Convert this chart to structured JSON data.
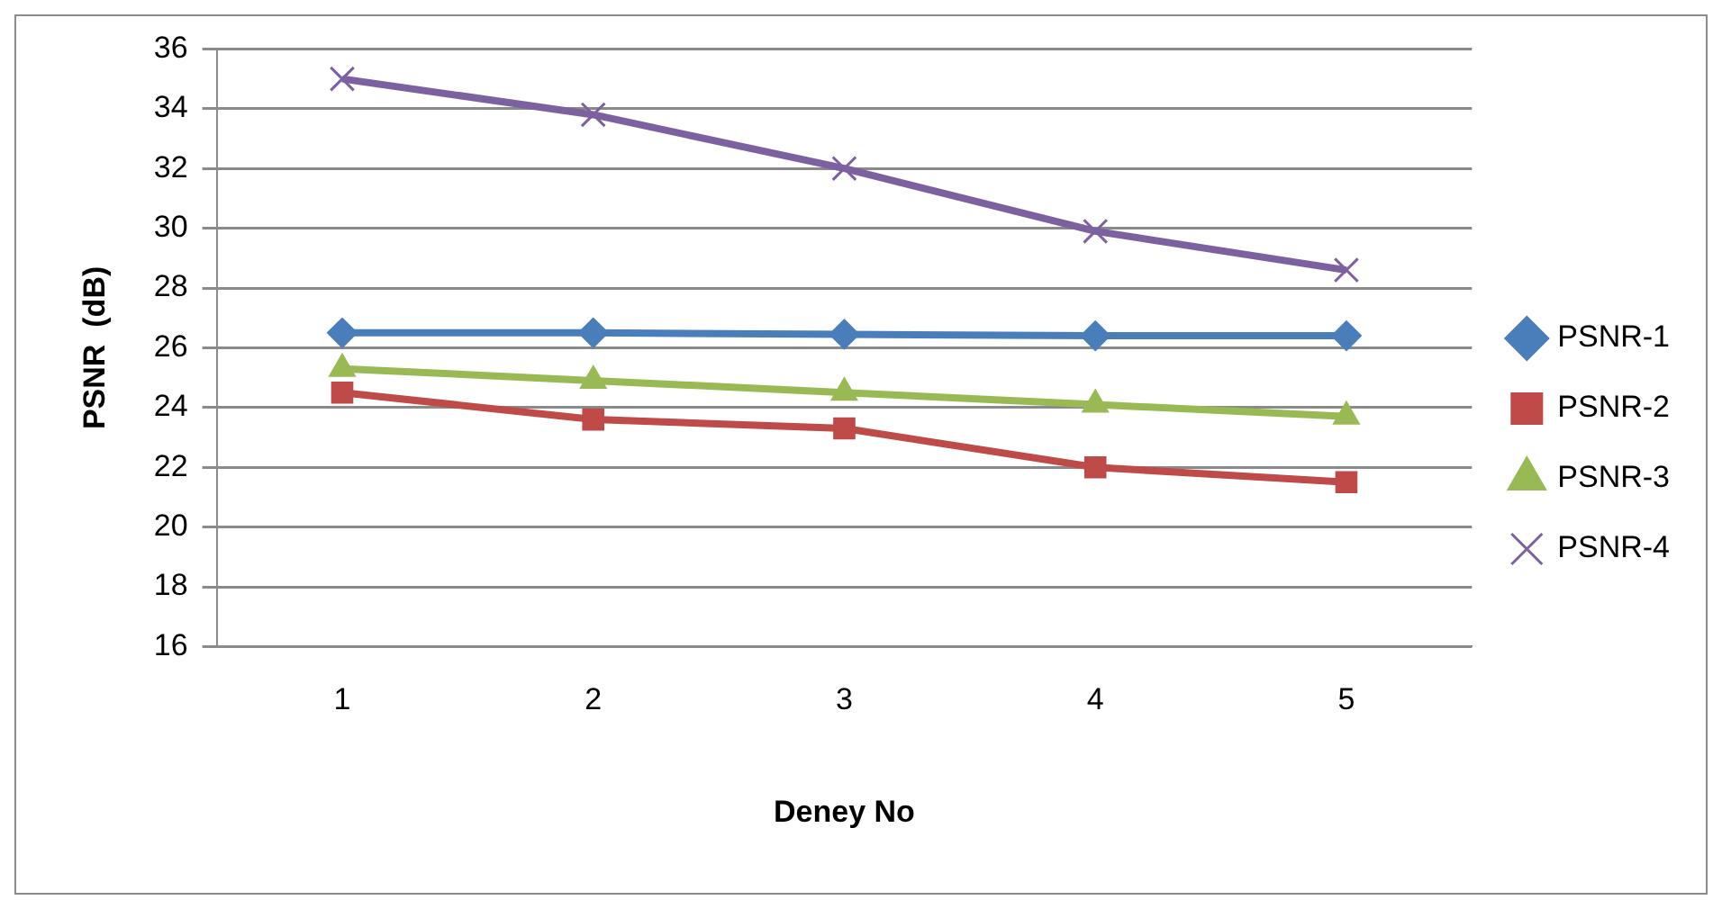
{
  "chart_data": {
    "type": "line",
    "xlabel": "Deney No",
    "ylabel": "PSNR  (dB)",
    "categories": [
      "1",
      "2",
      "3",
      "4",
      "5"
    ],
    "series": [
      {
        "name": "PSNR-1",
        "color": "#4a7ebb",
        "marker": "diamond",
        "values": [
          26.5,
          26.5,
          26.45,
          26.4,
          26.4
        ]
      },
      {
        "name": "PSNR-2",
        "color": "#be4b48",
        "marker": "square",
        "values": [
          24.5,
          23.6,
          23.3,
          22.0,
          21.5
        ]
      },
      {
        "name": "PSNR-3",
        "color": "#98b954",
        "marker": "triangle",
        "values": [
          25.3,
          24.9,
          24.5,
          24.1,
          23.7
        ]
      },
      {
        "name": "PSNR-4",
        "color": "#7d60a0",
        "marker": "cross",
        "values": [
          35.0,
          33.8,
          32.0,
          29.9,
          28.6
        ]
      }
    ],
    "ylim": [
      16,
      36
    ],
    "yticks": [
      16,
      18,
      20,
      22,
      24,
      26,
      28,
      30,
      32,
      34,
      36
    ],
    "grid": "y",
    "legend": "right",
    "line_style": "solid"
  }
}
